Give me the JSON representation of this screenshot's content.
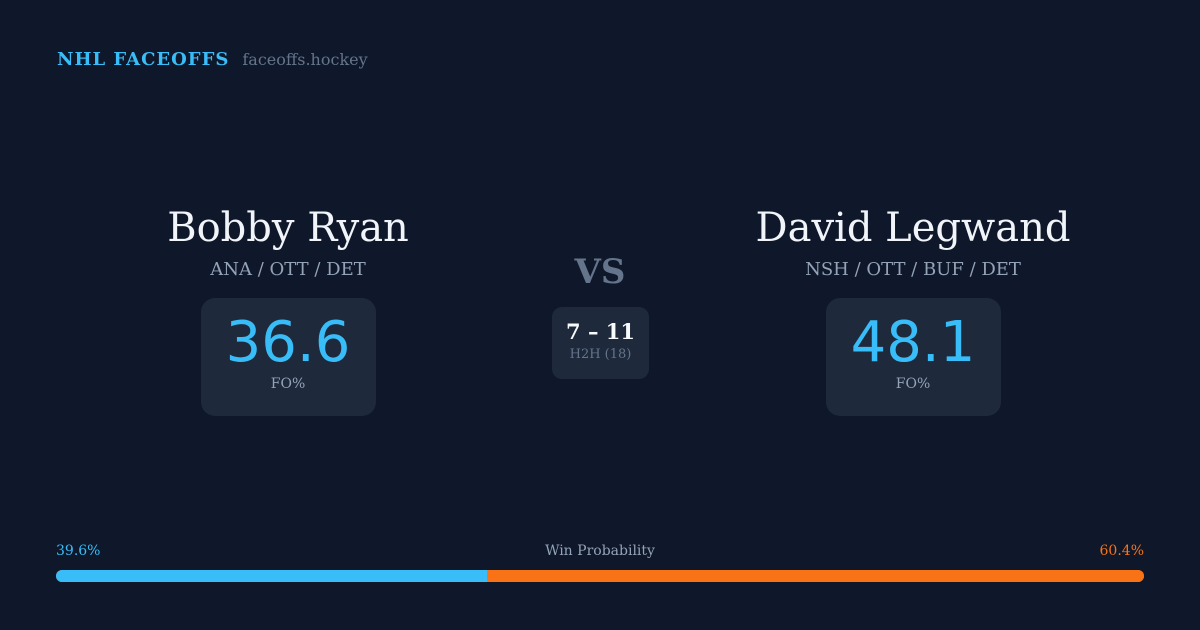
{
  "brand": {
    "title": "NHL FACEOFFS",
    "url": "faceoffs.hockey"
  },
  "player1": {
    "name": "Bobby Ryan",
    "teams": "ANA / OTT / DET",
    "fo_pct": "36.6",
    "fo_label": "FO%"
  },
  "player2": {
    "name": "David Legwand",
    "teams": "NSH / OTT / BUF / DET",
    "fo_pct": "48.1",
    "fo_label": "FO%"
  },
  "vs": "VS",
  "h2h": {
    "score": "7 – 11",
    "label": "H2H (18)"
  },
  "win_probability": {
    "label": "Win Probability",
    "player1": "39.6%",
    "player2": "60.4%",
    "player1_fraction": 0.396
  },
  "colors": {
    "player1": "#38bdf8",
    "player2": "#f97316",
    "background": "#0f172a"
  }
}
